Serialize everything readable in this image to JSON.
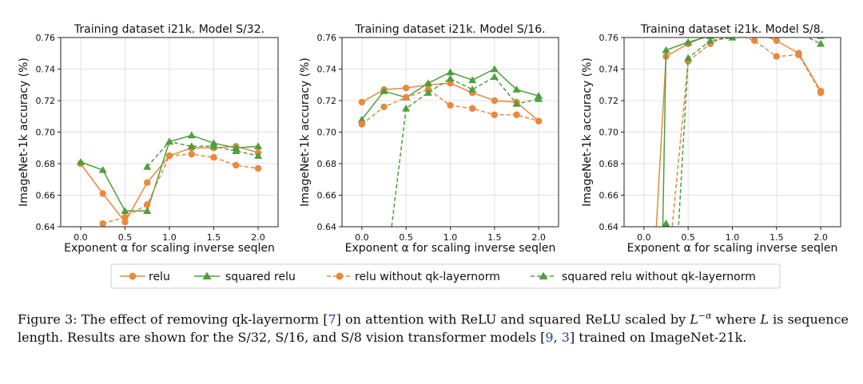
{
  "chart_data": [
    {
      "type": "line",
      "title": "Training dataset i21k. Model S/32.",
      "xlabel": "Exponent α for scaling inverse seqlen",
      "ylabel": "ImageNet-1k accuracy (%)",
      "xlim": [
        0.0,
        2.0
      ],
      "ylim": [
        0.64,
        0.76
      ],
      "xticks": [
        "0.0",
        "0.5",
        "1.0",
        "1.5",
        "2.0"
      ],
      "yticks": [
        "0.64",
        "0.66",
        "0.68",
        "0.70",
        "0.72",
        "0.74",
        "0.76"
      ],
      "series": [
        {
          "name": "relu",
          "x": [
            0,
            0.25,
            0.5,
            0.75,
            1.0,
            1.25,
            1.5,
            1.75,
            2.0
          ],
          "values": [
            0.68,
            0.661,
            0.643,
            0.668,
            0.685,
            0.69,
            0.69,
            0.691,
            0.687
          ]
        },
        {
          "name": "squared relu",
          "x": [
            0,
            0.25,
            0.5,
            0.75,
            1.0,
            1.25,
            1.5,
            1.75,
            2.0
          ],
          "values": [
            0.681,
            0.676,
            0.65,
            0.65,
            0.694,
            0.698,
            0.693,
            0.69,
            0.691
          ]
        },
        {
          "name": "relu without qk-layernorm",
          "x": [
            0.25,
            0.5,
            0.75,
            1.0,
            1.25,
            1.5,
            1.75,
            2.0
          ],
          "values": [
            0.642,
            0.646,
            0.654,
            0.685,
            0.686,
            0.684,
            0.679,
            0.677
          ]
        },
        {
          "name": "squared relu without qk-layernorm",
          "x": [
            0.75,
            1.0,
            1.25,
            1.5,
            1.75,
            2.0
          ],
          "values": [
            0.678,
            0.694,
            0.691,
            0.691,
            0.688,
            0.685
          ]
        }
      ]
    },
    {
      "type": "line",
      "title": "Training dataset i21k. Model S/16.",
      "xlabel": "Exponent α for scaling inverse seqlen",
      "ylabel": "ImageNet-1k accuracy (%)",
      "xlim": [
        0.0,
        2.0
      ],
      "ylim": [
        0.64,
        0.76
      ],
      "xticks": [
        "0.0",
        "0.5",
        "1.0",
        "1.5",
        "2.0"
      ],
      "yticks": [
        "0.64",
        "0.66",
        "0.68",
        "0.70",
        "0.72",
        "0.74",
        "0.76"
      ],
      "series": [
        {
          "name": "relu",
          "x": [
            0,
            0.25,
            0.5,
            0.75,
            1.0,
            1.25,
            1.5,
            1.75,
            2.0
          ],
          "values": [
            0.719,
            0.727,
            0.728,
            0.73,
            0.731,
            0.725,
            0.72,
            0.719,
            0.707
          ]
        },
        {
          "name": "squared relu",
          "x": [
            0,
            0.25,
            0.5,
            0.75,
            1.0,
            1.25,
            1.5,
            1.75,
            2.0
          ],
          "values": [
            0.708,
            0.726,
            0.722,
            0.731,
            0.738,
            0.733,
            0.74,
            0.727,
            0.723
          ]
        },
        {
          "name": "relu without qk-layernorm",
          "x": [
            0,
            0.25,
            0.5,
            0.75,
            1.0,
            1.25,
            1.5,
            1.75,
            2.0
          ],
          "values": [
            0.705,
            0.716,
            0.722,
            0.727,
            0.717,
            0.715,
            0.711,
            0.711,
            0.707
          ]
        },
        {
          "name": "squared relu without qk-layernorm",
          "x": [
            0.25,
            0.5,
            0.75,
            1.0,
            1.25,
            1.5,
            1.75,
            2.0
          ],
          "values": [
            0.6,
            0.715,
            0.725,
            0.734,
            0.727,
            0.735,
            0.718,
            0.721
          ]
        }
      ]
    },
    {
      "type": "line",
      "title": "Training dataset i21k. Model S/8.",
      "xlabel": "Exponent α for scaling inverse seqlen",
      "ylabel": "ImageNet-1k accuracy (%)",
      "xlim": [
        0.0,
        2.0
      ],
      "ylim": [
        0.64,
        0.76
      ],
      "xticks": [
        "0.0",
        "0.5",
        "1.0",
        "1.5",
        "2.0"
      ],
      "yticks": [
        "0.64",
        "0.66",
        "0.68",
        "0.70",
        "0.72",
        "0.74",
        "0.76"
      ],
      "series": [
        {
          "name": "relu",
          "x": [
            0.1,
            0.25,
            0.5,
            0.75,
            1.0,
            1.25,
            1.5,
            1.75,
            2.0
          ],
          "values": [
            0.6,
            0.748,
            0.756,
            0.762,
            0.764,
            0.764,
            0.758,
            0.75,
            0.726
          ]
        },
        {
          "name": "squared relu",
          "x": [
            0.2,
            0.25,
            0.5,
            0.75,
            1.0,
            1.25,
            1.5,
            1.75,
            2.0
          ],
          "values": [
            0.6,
            0.752,
            0.757,
            0.761,
            0.767,
            0.77,
            0.768,
            0.77,
            0.761
          ]
        },
        {
          "name": "relu without qk-layernorm",
          "x": [
            0.25,
            0.5,
            0.75,
            1.0,
            1.25,
            1.5,
            1.75,
            2.0
          ],
          "values": [
            0.6,
            0.745,
            0.756,
            0.763,
            0.758,
            0.748,
            0.749,
            0.725
          ]
        },
        {
          "name": "squared relu without qk-layernorm",
          "x": [
            0.2,
            0.25,
            0.35,
            0.5,
            0.75,
            1.0,
            1.25,
            1.5,
            1.75,
            2.0
          ],
          "values": [
            0.6,
            0.642,
            0.6,
            0.747,
            0.758,
            0.76,
            0.768,
            0.764,
            0.763,
            0.756
          ]
        }
      ]
    }
  ],
  "legend": {
    "items": [
      {
        "label": "relu",
        "color": "#e8893c",
        "marker": "circle",
        "dash": false
      },
      {
        "label": "squared relu",
        "color": "#4f9e3e",
        "marker": "triangle",
        "dash": false
      },
      {
        "label": "relu without qk-layernorm",
        "color": "#e8893c",
        "marker": "circle",
        "dash": true
      },
      {
        "label": "squared relu without qk-layernorm",
        "color": "#4f9e3e",
        "marker": "triangle",
        "dash": true
      }
    ]
  },
  "caption": {
    "prefix": "Figure 3: The effect of removing qk-layernorm [",
    "ref1": "7",
    "mid1": "] on attention with ReLU and squared ReLU scaled by ",
    "math_base": "L",
    "math_exp": "−α",
    "mid2": " where ",
    "math_l": "L",
    "mid3": " is sequence length. Results are shown for the S/32, S/16, and S/8 vision transformer models [",
    "ref2": "9",
    "sep": ", ",
    "ref3": "3",
    "suffix": "] trained on ImageNet-21k."
  }
}
